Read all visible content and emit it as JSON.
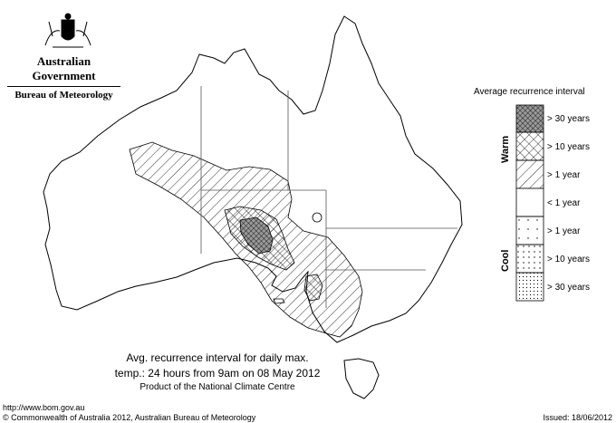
{
  "header": {
    "government": "Australian Government",
    "bureau": "Bureau of Meteorology"
  },
  "legend": {
    "title": "Average recurrence interval",
    "warm_label": "Warm",
    "cool_label": "Cool",
    "items": [
      {
        "label": "> 30 years",
        "pattern": "warm-30"
      },
      {
        "label": "> 10 years",
        "pattern": "warm-10"
      },
      {
        "label": "> 1 year",
        "pattern": "warm-1"
      },
      {
        "label": "< 1 year",
        "pattern": "none"
      },
      {
        "label": "> 1 year",
        "pattern": "cool-1"
      },
      {
        "label": "> 10 years",
        "pattern": "cool-10"
      },
      {
        "label": "> 30 years",
        "pattern": "cool-30"
      }
    ]
  },
  "caption": {
    "line1": "Avg. recurrence interval for daily max.",
    "line2": "temp.: 24 hours from 9am on 08 May 2012",
    "line3": "Product of the National Climate Centre"
  },
  "footer": {
    "url": "http://www.bom.gov.au",
    "copyright": "© Commonwealth of Australia 2012, Australian Bureau of Meteorology",
    "issued": "Issued: 18/06/2012"
  },
  "colors": {
    "ink": "#000000",
    "background": "#ffffff",
    "shade_dense": "#8a8a8a",
    "shade_mid": "#c8c8c8"
  }
}
